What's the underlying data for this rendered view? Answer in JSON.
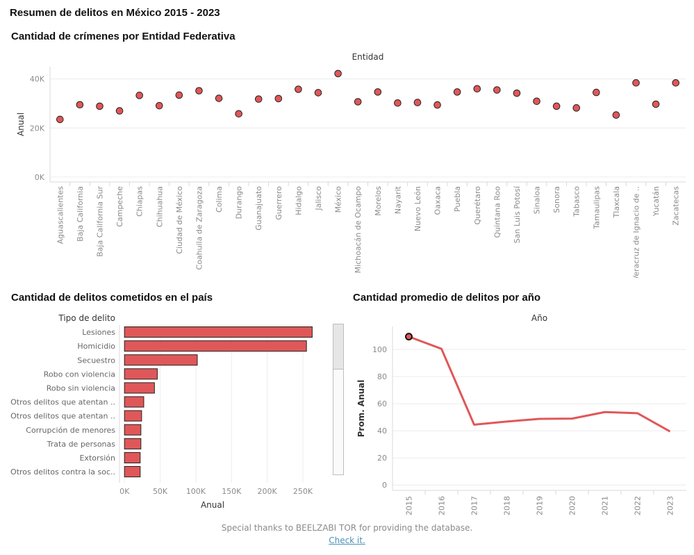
{
  "dashboard_title": "Resumen de delitos en México 2015 - 2023",
  "colors": {
    "mark": "#e05759",
    "outline": "#222222",
    "grid": "#ececec",
    "axis_text": "#8a8a8a",
    "link": "#4a90b8"
  },
  "footer": {
    "credit": "Special thanks to BEELZABI TOR for providing the database.",
    "link_text": "Check it."
  },
  "chart_data": [
    {
      "id": "entidad",
      "type": "scatter",
      "title": "Cantidad de crímenes por Entidad Federativa",
      "header": "Entidad",
      "ylabel": "Anual",
      "ylim": [
        -2000,
        45000
      ],
      "yticks": [
        0,
        20000,
        40000
      ],
      "ytick_labels": [
        "0K",
        "20K",
        "40K"
      ],
      "grid": true,
      "categories": [
        "Aguascalientes",
        "Baja California",
        "Baja California Sur",
        "Campeche",
        "Chiapas",
        "Chihuahua",
        "Ciudad de México",
        "Coahuila de Zaragoza",
        "Colima",
        "Durango",
        "Guanajuato",
        "Guerrero",
        "Hidalgo",
        "Jalisco",
        "México",
        "Michoacán de Ocampo",
        "Morelos",
        "Nayarit",
        "Nuevo León",
        "Oaxaca",
        "Puebla",
        "Querétaro",
        "Quintana Roo",
        "San Luis Potosí",
        "Sinaloa",
        "Sonora",
        "Tabasco",
        "Tamaulipas",
        "Tlaxcala",
        "Veracruz de Ignacio de ..",
        "Yucatán",
        "Zacatecas"
      ],
      "values": [
        23500,
        29500,
        28900,
        27000,
        33300,
        29100,
        33400,
        35200,
        32100,
        25800,
        31800,
        32000,
        35800,
        34400,
        42200,
        30700,
        34700,
        30200,
        30400,
        29400,
        34700,
        36000,
        35500,
        34200,
        30900,
        28900,
        28200,
        34500,
        25300,
        38400,
        29700,
        38400
      ]
    },
    {
      "id": "tipo",
      "type": "bar",
      "orientation": "horizontal",
      "title": "Cantidad de delitos cometidos en el país",
      "header": "Tipo de delito",
      "xlabel": "Anual",
      "xlim": [
        -7000,
        285000
      ],
      "xticks": [
        0,
        50000,
        100000,
        150000,
        200000,
        250000
      ],
      "xtick_labels": [
        "0K",
        "50K",
        "100K",
        "150K",
        "200K",
        "250K"
      ],
      "grid": true,
      "categories": [
        "Lesiones",
        "Homicidio",
        "Secuestro",
        "Robo con violencia",
        "Robo sin violencia",
        "Otros delitos que atentan ..",
        "Otros delitos que atentan ..",
        "Corrupción de menores",
        "Trata de personas",
        "Extorsión",
        "Otros delitos contra la soc.."
      ],
      "values": [
        263000,
        255000,
        102000,
        46000,
        42000,
        27000,
        24000,
        23000,
        23000,
        22000,
        22000
      ]
    },
    {
      "id": "anio",
      "type": "line",
      "title": "Cantidad promedio de delitos por año",
      "header": "Año",
      "ylabel": "Prom. Anual",
      "ylim": [
        -4,
        117
      ],
      "yticks": [
        0,
        20,
        40,
        60,
        80,
        100
      ],
      "ytick_labels": [
        "0",
        "20",
        "40",
        "60",
        "80",
        "100"
      ],
      "grid": true,
      "x": [
        "2015",
        "2016",
        "2017",
        "2018",
        "2019",
        "2020",
        "2021",
        "2022",
        "2023"
      ],
      "values": [
        109.5,
        100.5,
        44.5,
        46.8,
        48.8,
        49.0,
        53.8,
        53.0,
        39.5
      ],
      "highlight_index": 0
    }
  ]
}
